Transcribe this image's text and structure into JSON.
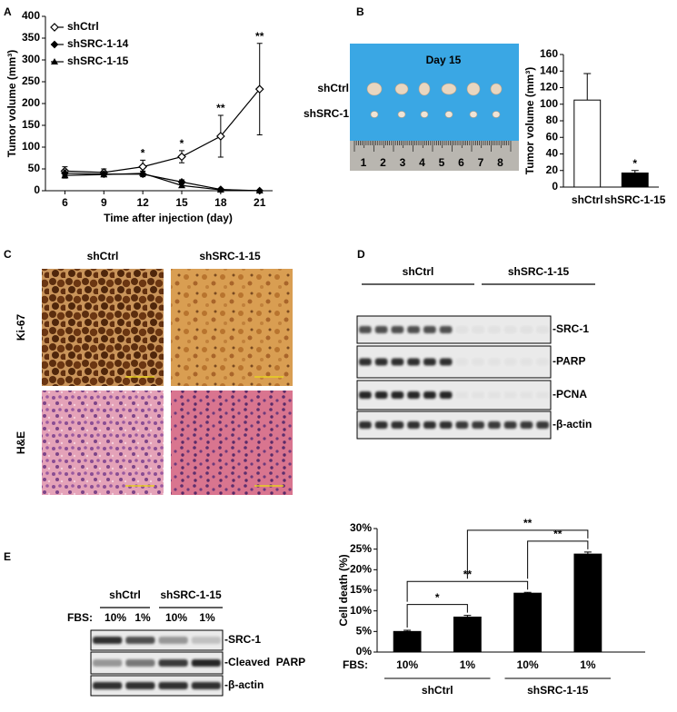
{
  "panel_labels": [
    "A",
    "B",
    "C",
    "D",
    "E"
  ],
  "chart_data": [
    {
      "type": "line",
      "x_label": "Time after injection (day)",
      "y_label": "Tumor volume (mm³)",
      "x": [
        6,
        9,
        12,
        15,
        18,
        21
      ],
      "xlim": [
        4.5,
        22
      ],
      "xticks": [
        6,
        9,
        12,
        15,
        18,
        21
      ],
      "ylim": [
        0,
        400
      ],
      "yticks": [
        0,
        50,
        100,
        150,
        200,
        250,
        300,
        350,
        400
      ],
      "legend": "upper left",
      "series": [
        {
          "name": "shCtrl",
          "color": "#000000",
          "marker": "diamond-open",
          "values": [
            45,
            42,
            55,
            78,
            125,
            233
          ],
          "errors": [
            10,
            8,
            15,
            14,
            48,
            105
          ]
        },
        {
          "name": "shSRC-1-14",
          "color": "#000000",
          "marker": "diamond",
          "values": [
            40,
            38,
            38,
            20,
            3,
            0
          ],
          "errors": [
            8,
            6,
            6,
            5,
            2,
            0
          ]
        },
        {
          "name": "shSRC-1-15",
          "color": "#000000",
          "marker": "triangle",
          "values": [
            35,
            37,
            40,
            12,
            2,
            0
          ],
          "errors": [
            6,
            5,
            5,
            4,
            1,
            0
          ]
        }
      ],
      "significance": [
        null,
        null,
        "*",
        "*",
        "**",
        "**"
      ]
    },
    {
      "type": "bar",
      "y_label": "Tumor volume (mm³)",
      "categories": [
        "shCtrl",
        "shSRC-1-15"
      ],
      "values": [
        105,
        17
      ],
      "errors": [
        32,
        3
      ],
      "colors": [
        "#ffffff",
        "#000000"
      ],
      "ylim": [
        0,
        160
      ],
      "yticks": [
        0,
        20,
        40,
        60,
        80,
        100,
        120,
        140,
        160
      ],
      "significance": [
        null,
        "*"
      ]
    },
    {
      "type": "bar",
      "y_label": "Cell death (%)",
      "x_prefix": "FBS:",
      "categories": [
        "10%",
        "1%",
        "10%",
        "1%"
      ],
      "groups": [
        "shCtrl",
        "shSRC-1-15"
      ],
      "values": [
        5,
        8.5,
        14.3,
        23.8
      ],
      "errors": [
        0.3,
        0.4,
        0.2,
        0.5
      ],
      "color": "#000000",
      "ylim": [
        0,
        30
      ],
      "yticks": [
        {
          "value": 0,
          "label": "0%"
        },
        {
          "value": 5,
          "label": "5%"
        },
        {
          "value": 10,
          "label": "10%"
        },
        {
          "value": 15,
          "label": "15%"
        },
        {
          "value": 20,
          "label": "20%"
        },
        {
          "value": 25,
          "label": "25%"
        },
        {
          "value": 30,
          "label": "30%"
        }
      ],
      "comparisons": [
        {
          "between": [
            0,
            1
          ],
          "label": "*"
        },
        {
          "between": [
            0,
            2
          ],
          "label": "**"
        },
        {
          "between": [
            2,
            3
          ],
          "label": "**"
        },
        {
          "between": [
            1,
            3
          ],
          "label": "**"
        }
      ]
    }
  ],
  "photo": {
    "title": "Day 15",
    "rows": [
      "shCtrl",
      "shSRC-1"
    ],
    "ruler": [
      "1",
      "2",
      "3",
      "4",
      "5",
      "6",
      "7",
      "8"
    ]
  },
  "histology": {
    "columns": [
      "shCtrl",
      "shSRC-1-15"
    ],
    "rows": [
      "Ki-67",
      "H&E"
    ]
  },
  "blot_d": {
    "groups": [
      "shCtrl",
      "shSRC-1-15"
    ],
    "bands": [
      "-SRC-1",
      "-PARP",
      "-PCNA",
      "-β-actin"
    ]
  },
  "blot_e": {
    "groups": [
      "shCtrl",
      "shSRC-1-15"
    ],
    "condition_label": "FBS:",
    "conditions": [
      "10%",
      "1%",
      "10%",
      "1%"
    ],
    "bands": [
      "-SRC-1",
      "-Cleaved  PARP",
      "-β-actin"
    ]
  }
}
